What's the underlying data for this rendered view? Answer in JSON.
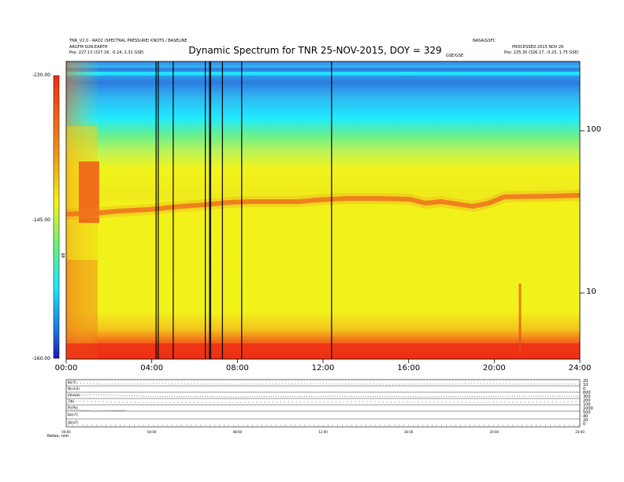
{
  "header": {
    "left_line1": "TNR_V2.0 - RAD2 (SPECTRAL PRESSURE) KNOTS / BASELINE",
    "left_line2": "ARGFM SUN-EARTH",
    "left_line3": "Pos: 227.13 (327.16, -0.24, 2.31 GSE)",
    "right_line1": "NASA/GSFC",
    "right_line2": "PROCESSED 2015 NOV 26",
    "right_line3": "Pos: 225.30 (326.17, -0.25, 1.75 GSE)",
    "center_small": "GSE/GSE"
  },
  "colorbar": {
    "top_label": "-130.00",
    "mid_label": "-145.00",
    "bottom_label": "-160.00",
    "axis_label": "dB"
  },
  "chart_data": {
    "type": "heatmap",
    "title": "Dynamic Spectrum for TNR 25-NOV-2015, DOY = 329",
    "x_ticks": [
      "00:00",
      "04:00",
      "08:00",
      "12:00",
      "16:00",
      "20:00",
      "24:00"
    ],
    "y_ticks_right": [
      "100",
      "10"
    ],
    "y_scale": "log",
    "colorbar_range": [
      -160,
      -130
    ],
    "markers_hours": [
      4.2,
      4.3,
      5.0,
      6.5,
      6.7,
      6.75,
      7.3,
      8.2,
      12.4
    ],
    "colors": {
      "top_band": "#2b6fd8",
      "cyan_band": "#1ee6ff",
      "green_band": "#7cf08a",
      "yellow_main": "#eff81a",
      "emission_line": "#ef6a1e",
      "bottom_band": "#ef3418"
    }
  },
  "lower_panel": {
    "labels": [
      "B(nT)",
      "N(cm3)",
      "V(km/s)",
      "T(K)",
      "P(nPa)",
      "Bz(nT)",
      "|B|(nT)"
    ],
    "right_values": [
      "20",
      "10",
      "0",
      "600",
      "300",
      "200",
      "100",
      "1000",
      "500",
      "40",
      "20",
      "0"
    ],
    "x_ticks": [
      "00:00",
      "04:00",
      "08:00",
      "12:00",
      "16:00",
      "20:00",
      "24:00"
    ],
    "footer": "Notes: nnh"
  }
}
